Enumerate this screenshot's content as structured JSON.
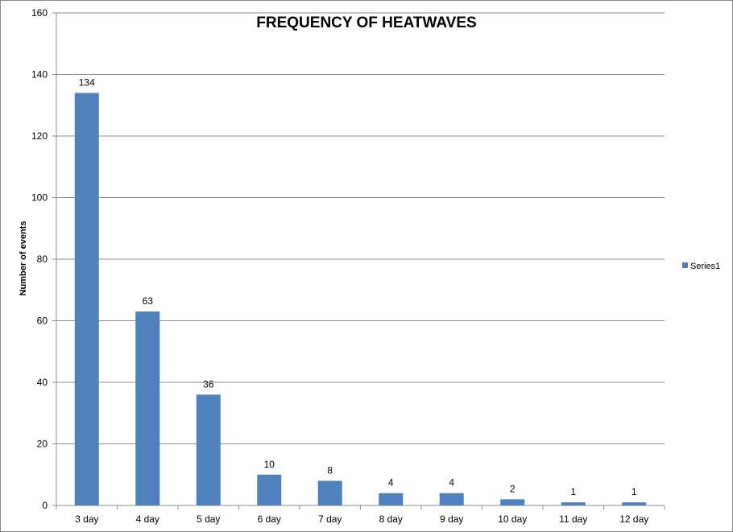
{
  "chart_data": {
    "type": "bar",
    "title": "FREQUENCY OF HEATWAVES",
    "xlabel": "",
    "ylabel": "Number of events",
    "categories": [
      "3 day",
      "4 day",
      "5 day",
      "6 day",
      "7 day",
      "8 day",
      "9 day",
      "10 day",
      "11 day",
      "12 day"
    ],
    "series": [
      {
        "name": "Series1",
        "values": [
          134,
          63,
          36,
          10,
          8,
          4,
          4,
          2,
          1,
          1
        ],
        "color": "#4F81BD"
      }
    ],
    "ylim": [
      0,
      160
    ],
    "yticks": [
      0,
      20,
      40,
      60,
      80,
      100,
      120,
      140,
      160
    ],
    "grid": true,
    "legend_position": "right",
    "data_labels": true
  }
}
